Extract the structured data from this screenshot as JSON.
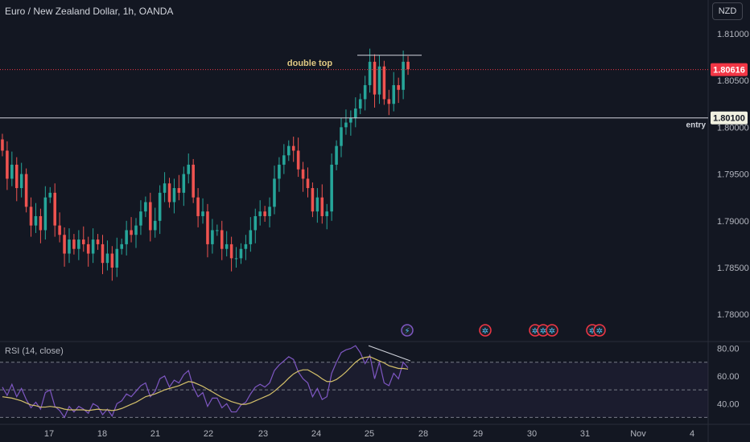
{
  "header": {
    "title": "Euro / New Zealand Dollar, 1h, OANDA",
    "currency": "NZD"
  },
  "annotations": {
    "double_top": "double top",
    "entry": "entry"
  },
  "price_tags": {
    "last": "1.80616",
    "entry": "1.80100"
  },
  "rsi": {
    "label": "RSI (14, close)",
    "ticks": [
      "80.00",
      "60.00",
      "40.00"
    ]
  },
  "colors": {
    "up": "#26a69a",
    "down": "#ef5350",
    "rsi_line": "#7e57c2",
    "rsi_ma": "#d4c06a",
    "background": "#131722",
    "last_price": "#f23645"
  },
  "icons": [
    "flash-event-icon",
    "economic-event-icon"
  ],
  "chart_data": [
    {
      "type": "candlestick",
      "title": "Euro / New Zealand Dollar, 1h, OANDA",
      "ylabel": "NZD",
      "y_ticks": [
        1.78,
        1.785,
        1.79,
        1.795,
        1.8,
        1.805,
        1.81
      ],
      "ylim": [
        1.7771,
        1.8136
      ],
      "x_tick_labels": [
        "17",
        "18",
        "21",
        "22",
        "23",
        "24",
        "25",
        "28",
        "29",
        "30",
        "31",
        "Nov",
        "4"
      ],
      "horizontal_lines": [
        {
          "label": "entry",
          "value": 1.801
        },
        {
          "label": "double top",
          "value": 1.8077
        }
      ],
      "last_price": 1.80616,
      "series": [
        {
          "name": "price",
          "values": [
            1.7975,
            1.7945,
            1.796,
            1.7935,
            1.795,
            1.7915,
            1.7895,
            1.7905,
            1.789,
            1.7925,
            1.793,
            1.7895,
            1.7885,
            1.7865,
            1.788,
            1.787,
            1.788,
            1.7875,
            1.7865,
            1.788,
            1.7875,
            1.7855,
            1.7865,
            1.785,
            1.787,
            1.7875,
            1.789,
            1.7885,
            1.7895,
            1.791,
            1.792,
            1.789,
            1.79,
            1.793,
            1.794,
            1.792,
            1.7935,
            1.793,
            1.795,
            1.796,
            1.7925,
            1.7905,
            1.791,
            1.7875,
            1.789,
            1.789,
            1.787,
            1.7875,
            1.786,
            1.786,
            1.787,
            1.7875,
            1.789,
            1.7905,
            1.791,
            1.7905,
            1.7915,
            1.7945,
            1.796,
            1.797,
            1.798,
            1.7975,
            1.7955,
            1.7945,
            1.7935,
            1.791,
            1.7925,
            1.7905,
            1.791,
            1.796,
            1.798,
            1.8,
            1.8005,
            1.801,
            1.802,
            1.803,
            1.8045,
            1.807,
            1.8035,
            1.8065,
            1.803,
            1.8025,
            1.8045,
            1.804,
            1.807,
            1.8062
          ]
        }
      ]
    },
    {
      "type": "line",
      "title": "RSI (14, close)",
      "ylim": [
        25,
        85
      ],
      "y_ticks": [
        40,
        60,
        80
      ],
      "bands": [
        30,
        50,
        70
      ],
      "series": [
        {
          "name": "RSI",
          "values": [
            52,
            46,
            54,
            45,
            51,
            43,
            37,
            41,
            36,
            48,
            50,
            38,
            35,
            30,
            38,
            34,
            38,
            36,
            33,
            40,
            38,
            32,
            36,
            31,
            40,
            42,
            47,
            45,
            49,
            53,
            55,
            45,
            49,
            58,
            60,
            52,
            57,
            55,
            61,
            64,
            52,
            45,
            48,
            38,
            44,
            44,
            37,
            40,
            34,
            34,
            39,
            41,
            47,
            52,
            54,
            52,
            55,
            64,
            68,
            71,
            74,
            72,
            63,
            58,
            55,
            45,
            51,
            43,
            45,
            62,
            70,
            77,
            79,
            80,
            82,
            77,
            69,
            75,
            58,
            70,
            55,
            53,
            62,
            58,
            70,
            66
          ]
        },
        {
          "name": "RSI-based MA",
          "values": [
            45,
            44.5,
            44,
            43,
            42,
            40.5,
            39,
            38.5,
            37.5,
            37.5,
            38,
            37.5,
            37,
            36,
            35.5,
            35.5,
            35.5,
            35.5,
            35,
            35.5,
            36,
            35.5,
            35.5,
            35,
            35.5,
            36.5,
            38,
            39.5,
            41,
            43,
            45,
            46,
            47,
            48.5,
            50,
            51,
            52,
            53,
            54.5,
            56,
            55.5,
            54,
            52.5,
            50.5,
            48.5,
            46.5,
            44.5,
            43,
            41.5,
            40.5,
            39.5,
            39.5,
            40.5,
            42,
            43.5,
            45,
            46.5,
            49,
            52,
            55,
            58.5,
            61.5,
            63.5,
            64.5,
            64.5,
            62.5,
            60.5,
            58,
            56,
            56,
            57.5,
            60,
            63,
            66.5,
            70,
            72.5,
            73.5,
            74,
            72.5,
            71,
            69.5,
            67.5,
            66.5,
            65.5,
            65.5,
            65
          ]
        }
      ]
    }
  ]
}
